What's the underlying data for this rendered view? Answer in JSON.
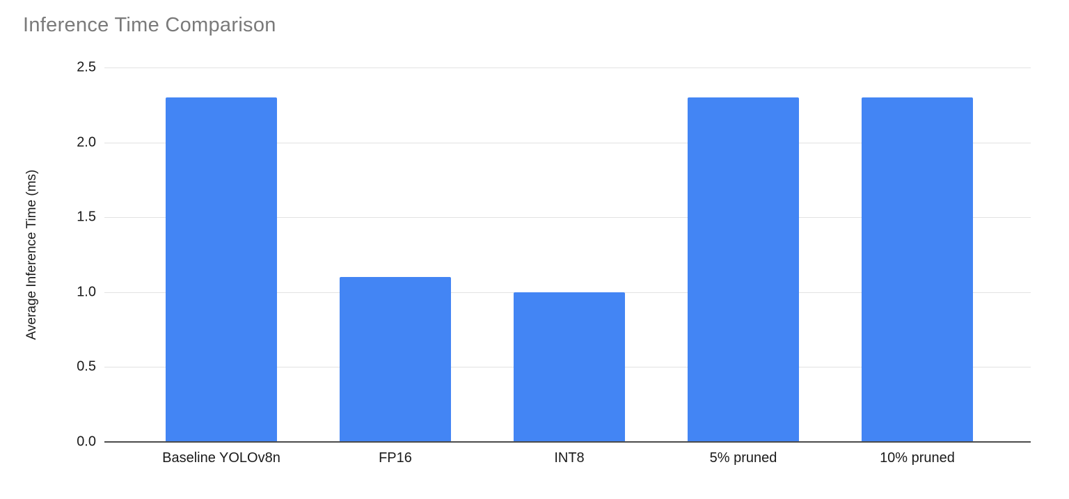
{
  "chart_data": {
    "type": "bar",
    "title": "Inference Time Comparison",
    "categories": [
      "Baseline YOLOv8n",
      "FP16",
      "INT8",
      "5% pruned",
      "10% pruned"
    ],
    "values": [
      2.3,
      1.1,
      1.0,
      2.3,
      2.3
    ],
    "xlabel": "",
    "ylabel": "Average Inference Time (ms)",
    "ylim": [
      0,
      2.5
    ],
    "ytick_labels": [
      "0.0",
      "0.5",
      "1.0",
      "1.5",
      "2.0",
      "2.5"
    ],
    "grid": true,
    "legend": "none",
    "colors": {
      "bar": "#4385f4",
      "title": "#7a7a7a",
      "axis_line": "#4b4b4b",
      "gridline": "#e2e2e2",
      "labels": "#1a1a1a",
      "background": "#ffffff"
    }
  }
}
